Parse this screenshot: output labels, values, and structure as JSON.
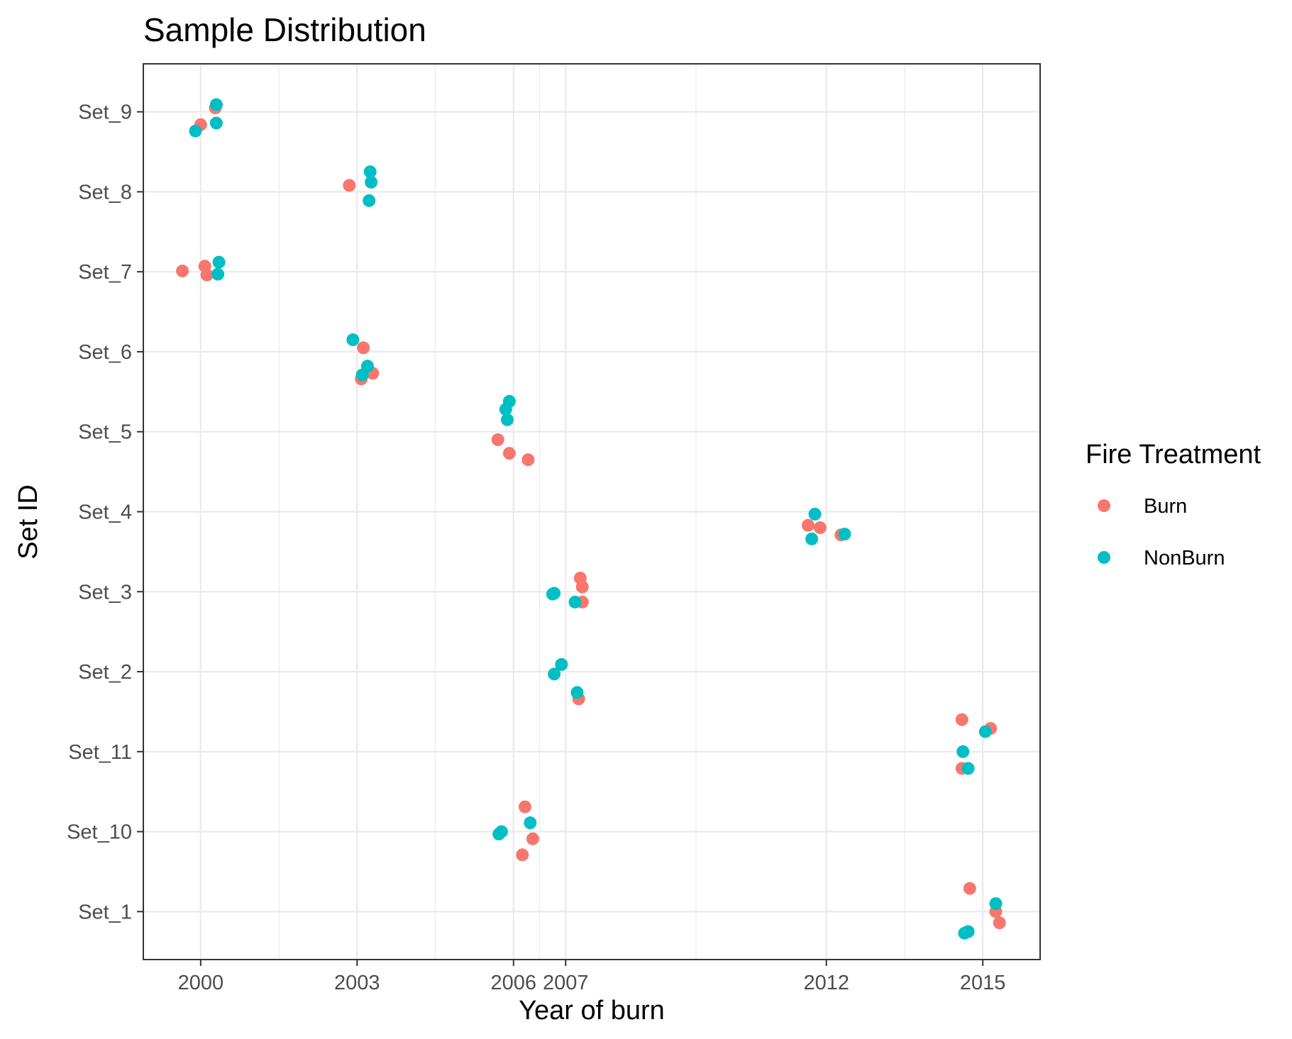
{
  "chart_data": {
    "type": "scatter",
    "title": "Sample Distribution",
    "xlabel": "Year of burn",
    "ylabel": "Set ID",
    "x_ticks": [
      2000,
      2003,
      2006,
      2007,
      2012,
      2015
    ],
    "xlim": [
      1998.9,
      2016.1
    ],
    "y_categories": [
      "Set_1",
      "Set_10",
      "Set_11",
      "Set_2",
      "Set_3",
      "Set_4",
      "Set_5",
      "Set_6",
      "Set_7",
      "Set_8",
      "Set_9"
    ],
    "grid": true,
    "legend": {
      "title": "Fire Treatment",
      "position": "right"
    },
    "colors": {
      "Burn": "#F8766D",
      "NonBurn": "#00BFC4"
    },
    "series": [
      {
        "name": "Burn",
        "points": [
          {
            "x": 2000.0,
            "y": "Set_9",
            "jitter": -0.16
          },
          {
            "x": 2000.28,
            "y": "Set_9",
            "jitter": 0.05
          },
          {
            "x": 2002.85,
            "y": "Set_8",
            "jitter": 0.08
          },
          {
            "x": 1999.65,
            "y": "Set_7",
            "jitter": 0.01
          },
          {
            "x": 2000.08,
            "y": "Set_7",
            "jitter": 0.07
          },
          {
            "x": 2000.12,
            "y": "Set_7",
            "jitter": -0.04
          },
          {
            "x": 2003.12,
            "y": "Set_6",
            "jitter": 0.05
          },
          {
            "x": 2003.08,
            "y": "Set_6",
            "jitter": -0.34
          },
          {
            "x": 2003.3,
            "y": "Set_6",
            "jitter": -0.27
          },
          {
            "x": 2005.7,
            "y": "Set_5",
            "jitter": -0.1
          },
          {
            "x": 2005.92,
            "y": "Set_5",
            "jitter": -0.27
          },
          {
            "x": 2006.28,
            "y": "Set_5",
            "jitter": -0.35
          },
          {
            "x": 2011.65,
            "y": "Set_4",
            "jitter": -0.17
          },
          {
            "x": 2011.88,
            "y": "Set_4",
            "jitter": -0.2
          },
          {
            "x": 2012.28,
            "y": "Set_4",
            "jitter": -0.29
          },
          {
            "x": 2007.28,
            "y": "Set_3",
            "jitter": 0.17
          },
          {
            "x": 2007.32,
            "y": "Set_3",
            "jitter": 0.06
          },
          {
            "x": 2007.32,
            "y": "Set_3",
            "jitter": -0.13
          },
          {
            "x": 2007.25,
            "y": "Set_2",
            "jitter": -0.34
          },
          {
            "x": 2014.6,
            "y": "Set_11",
            "jitter": 0.4
          },
          {
            "x": 2015.15,
            "y": "Set_11",
            "jitter": 0.29
          },
          {
            "x": 2014.6,
            "y": "Set_11",
            "jitter": -0.21
          },
          {
            "x": 2006.22,
            "y": "Set_10",
            "jitter": 0.31
          },
          {
            "x": 2006.37,
            "y": "Set_10",
            "jitter": -0.09
          },
          {
            "x": 2006.17,
            "y": "Set_10",
            "jitter": -0.29
          },
          {
            "x": 2014.75,
            "y": "Set_1",
            "jitter": 0.29
          },
          {
            "x": 2015.25,
            "y": "Set_1",
            "jitter": 0.0
          },
          {
            "x": 2015.32,
            "y": "Set_1",
            "jitter": -0.14
          }
        ]
      },
      {
        "name": "NonBurn",
        "points": [
          {
            "x": 2000.3,
            "y": "Set_9",
            "jitter": 0.09
          },
          {
            "x": 2000.3,
            "y": "Set_9",
            "jitter": -0.14
          },
          {
            "x": 1999.9,
            "y": "Set_9",
            "jitter": -0.24
          },
          {
            "x": 2003.25,
            "y": "Set_8",
            "jitter": 0.25
          },
          {
            "x": 2003.27,
            "y": "Set_8",
            "jitter": 0.12
          },
          {
            "x": 2003.23,
            "y": "Set_8",
            "jitter": -0.11
          },
          {
            "x": 2000.35,
            "y": "Set_7",
            "jitter": 0.12
          },
          {
            "x": 2000.33,
            "y": "Set_7",
            "jitter": -0.03
          },
          {
            "x": 2002.92,
            "y": "Set_6",
            "jitter": 0.15
          },
          {
            "x": 2003.2,
            "y": "Set_6",
            "jitter": -0.18
          },
          {
            "x": 2003.1,
            "y": "Set_6",
            "jitter": -0.29
          },
          {
            "x": 2005.92,
            "y": "Set_5",
            "jitter": 0.38
          },
          {
            "x": 2005.85,
            "y": "Set_5",
            "jitter": 0.28
          },
          {
            "x": 2005.88,
            "y": "Set_5",
            "jitter": 0.15
          },
          {
            "x": 2011.78,
            "y": "Set_4",
            "jitter": -0.03
          },
          {
            "x": 2011.72,
            "y": "Set_4",
            "jitter": -0.34
          },
          {
            "x": 2012.35,
            "y": "Set_4",
            "jitter": -0.28
          },
          {
            "x": 2006.78,
            "y": "Set_3",
            "jitter": -0.02
          },
          {
            "x": 2006.75,
            "y": "Set_3",
            "jitter": -0.03
          },
          {
            "x": 2007.18,
            "y": "Set_3",
            "jitter": -0.13
          },
          {
            "x": 2006.92,
            "y": "Set_2",
            "jitter": 0.09
          },
          {
            "x": 2006.78,
            "y": "Set_2",
            "jitter": -0.03
          },
          {
            "x": 2007.22,
            "y": "Set_2",
            "jitter": -0.26
          },
          {
            "x": 2015.05,
            "y": "Set_11",
            "jitter": 0.25
          },
          {
            "x": 2014.62,
            "y": "Set_11",
            "jitter": 0.0
          },
          {
            "x": 2014.72,
            "y": "Set_11",
            "jitter": -0.21
          },
          {
            "x": 2005.72,
            "y": "Set_10",
            "jitter": -0.03
          },
          {
            "x": 2005.77,
            "y": "Set_10",
            "jitter": 0.0
          },
          {
            "x": 2006.32,
            "y": "Set_10",
            "jitter": 0.11
          },
          {
            "x": 2015.25,
            "y": "Set_1",
            "jitter": 0.1
          },
          {
            "x": 2014.65,
            "y": "Set_1",
            "jitter": -0.27
          },
          {
            "x": 2014.72,
            "y": "Set_1",
            "jitter": -0.25
          }
        ]
      }
    ]
  }
}
